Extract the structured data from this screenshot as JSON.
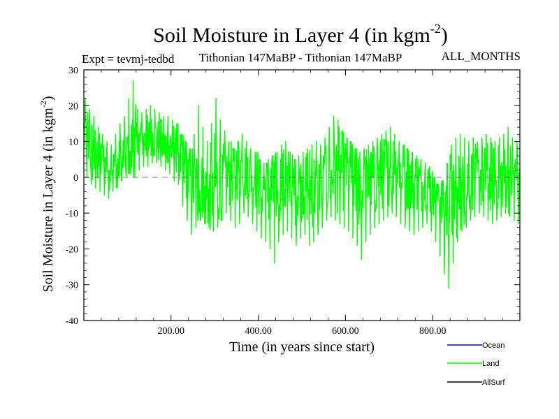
{
  "chart_data": {
    "type": "line",
    "title": "Soil Moisture in Layer 4 (in kgm",
    "title_sup": "-2",
    "title_close": ")",
    "subtitle_left": "Expt = tevmj-tedbd",
    "subtitle_center": "Tithonian 147MaBP - Tithonian 147MaBP",
    "subtitle_right": "ALL_MONTHS",
    "xlabel": "Time (in years since start)",
    "ylabel": "Soil Moisture in Layer 4 (in kgm",
    "ylabel_sup": "-2",
    "ylabel_close": ")",
    "xlim": [
      0,
      1000
    ],
    "ylim": [
      -40,
      30
    ],
    "x_ticks": [
      {
        "value": 200,
        "label": "200.00"
      },
      {
        "value": 400,
        "label": "400.00"
      },
      {
        "value": 600,
        "label": "600.00"
      },
      {
        "value": 800,
        "label": "800.00"
      }
    ],
    "y_ticks": [
      {
        "value": 30,
        "label": "30"
      },
      {
        "value": 20,
        "label": "20"
      },
      {
        "value": 10,
        "label": "10"
      },
      {
        "value": 0,
        "label": "0"
      },
      {
        "value": -10,
        "label": "-10"
      },
      {
        "value": -20,
        "label": "-20"
      },
      {
        "value": -30,
        "label": "-30"
      },
      {
        "value": -40,
        "label": "-40"
      }
    ],
    "reference_line": {
      "y": 0,
      "style": "dashed"
    },
    "series": [
      {
        "name": "Land",
        "color": "#00ff00",
        "x_step": 10,
        "x_start": 0,
        "mean": [
          12,
          8,
          6,
          5,
          4,
          3,
          3,
          3,
          4,
          6,
          8,
          9,
          10,
          10,
          11,
          11,
          11,
          10,
          9,
          9,
          8,
          8,
          5,
          2,
          0,
          -2,
          -3,
          -4,
          -5,
          -3,
          -2,
          -1,
          0,
          1,
          2,
          3,
          3,
          2,
          1,
          0,
          -2,
          -3,
          -4,
          -4,
          -3,
          -2,
          -2,
          -3,
          -4,
          -3,
          -2,
          -2,
          -3,
          -3,
          -2,
          -1,
          0,
          1,
          2,
          2,
          1,
          0,
          -1,
          -2,
          -2,
          -2,
          -1,
          0,
          1,
          2,
          3,
          3,
          2,
          1,
          0,
          -1,
          -1,
          -2,
          -2,
          -3,
          -4,
          -5,
          -6,
          -7,
          -6,
          -5,
          -4,
          -3,
          -1,
          0,
          0,
          0,
          0,
          0,
          0,
          0,
          0,
          0,
          0,
          0
        ],
        "max": [
          22,
          19,
          17,
          14,
          12,
          10,
          9,
          12,
          15,
          17,
          22,
          27,
          19,
          18,
          19,
          20,
          19,
          18,
          17,
          17,
          16,
          15,
          12,
          10,
          8,
          12,
          20,
          14,
          10,
          15,
          22,
          16,
          13,
          10,
          8,
          10,
          12,
          10,
          8,
          7,
          5,
          4,
          5,
          6,
          7,
          9,
          10,
          7,
          5,
          6,
          7,
          8,
          9,
          10,
          9,
          11,
          14,
          17,
          16,
          13,
          11,
          10,
          8,
          7,
          8,
          9,
          10,
          11,
          12,
          13,
          14,
          12,
          10,
          9,
          8,
          7,
          6,
          5,
          4,
          3,
          0,
          -2,
          -1,
          4,
          9,
          11,
          12,
          11,
          10,
          11,
          10,
          11,
          12,
          11,
          10,
          11,
          12,
          14,
          11,
          10
        ],
        "min": [
          0,
          -2,
          -3,
          -4,
          -5,
          -6,
          -4,
          -3,
          -1,
          0,
          1,
          0,
          2,
          3,
          3,
          4,
          4,
          3,
          2,
          1,
          -1,
          -2,
          -8,
          -12,
          -16,
          -14,
          -12,
          -13,
          -14,
          -15,
          -14,
          -12,
          -10,
          -12,
          -14,
          -13,
          -10,
          -11,
          -13,
          -15,
          -17,
          -18,
          -20,
          -24,
          -18,
          -16,
          -15,
          -17,
          -19,
          -17,
          -16,
          -19,
          -18,
          -16,
          -14,
          -12,
          -11,
          -12,
          -13,
          -14,
          -15,
          -17,
          -19,
          -23,
          -18,
          -16,
          -14,
          -13,
          -12,
          -11,
          -10,
          -11,
          -13,
          -14,
          -15,
          -16,
          -15,
          -14,
          -13,
          -15,
          -18,
          -22,
          -27,
          -31,
          -24,
          -18,
          -15,
          -14,
          -12,
          -11,
          -10,
          -11,
          -12,
          -13,
          -12,
          -11,
          -10,
          -11,
          -12,
          -13
        ]
      }
    ],
    "legend": [
      {
        "label": "Ocean",
        "color": "#0000ff"
      },
      {
        "label": "Land",
        "color": "#00ff00"
      },
      {
        "label": "AllSurf",
        "color": "#000000"
      }
    ]
  }
}
